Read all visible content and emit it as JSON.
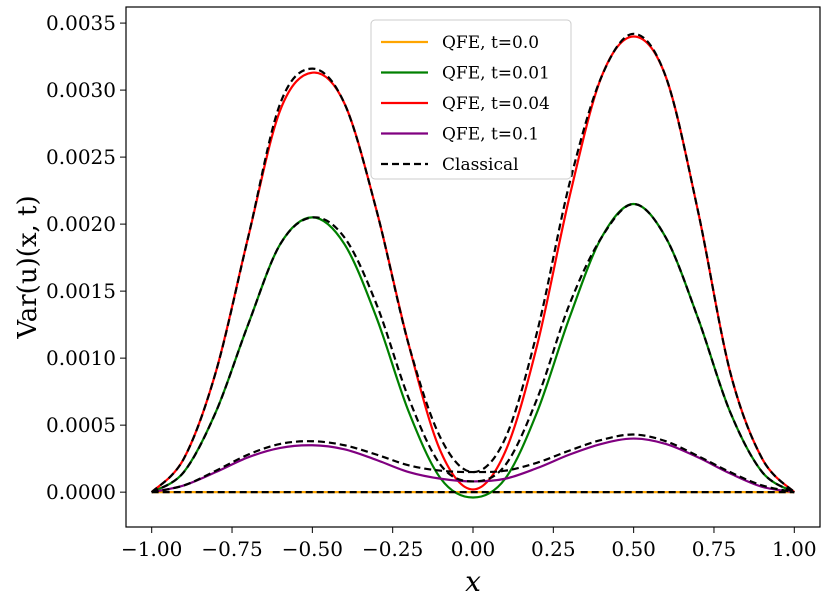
{
  "chart_data": {
    "type": "line",
    "title": "",
    "xlabel": "x",
    "ylabel": "Var(u)(x, t)",
    "xlim": [
      -1.08,
      1.08
    ],
    "ylim": [
      -0.00026,
      0.00362
    ],
    "grid": false,
    "legend_position": "top-center",
    "x_ticks": [
      -1.0,
      -0.75,
      -0.5,
      -0.25,
      0.0,
      0.25,
      0.5,
      0.75,
      1.0
    ],
    "x_tick_labels": [
      "−1.00",
      "−0.75",
      "−0.50",
      "−0.25",
      "0.00",
      "0.25",
      "0.50",
      "0.75",
      "1.00"
    ],
    "y_ticks": [
      0.0,
      0.0005,
      0.001,
      0.0015,
      0.002,
      0.0025,
      0.003,
      0.0035
    ],
    "y_tick_labels": [
      "0.0000",
      "0.0005",
      "0.0010",
      "0.0015",
      "0.0020",
      "0.0025",
      "0.0030",
      "0.0035"
    ],
    "x": [
      -1.0,
      -0.9,
      -0.8,
      -0.7,
      -0.6,
      -0.5,
      -0.4,
      -0.3,
      -0.2,
      -0.1,
      0.0,
      0.1,
      0.2,
      0.3,
      0.4,
      0.5,
      0.6,
      0.7,
      0.8,
      0.9,
      1.0
    ],
    "series": [
      {
        "name": "QFE, t=0.0",
        "color": "#ffa500",
        "dash": "solid",
        "values": [
          0,
          0,
          0,
          0,
          0,
          0,
          0,
          0,
          0,
          0,
          0,
          0,
          0,
          0,
          0,
          0,
          0,
          0,
          0,
          0,
          0
        ]
      },
      {
        "name": "QFE, t=0.01",
        "color": "#008000",
        "dash": "solid",
        "values": [
          0.0,
          0.00015,
          0.0006,
          0.00125,
          0.00185,
          0.00205,
          0.00185,
          0.0013,
          0.0006,
          0.0001,
          -4e-05,
          0.0001,
          0.0006,
          0.0013,
          0.0019,
          0.00215,
          0.0019,
          0.0013,
          0.0006,
          0.00015,
          0.0
        ]
      },
      {
        "name": "QFE, t=0.04",
        "color": "#ff0000",
        "dash": "solid",
        "values": [
          0.0,
          0.00025,
          0.0009,
          0.0019,
          0.00285,
          0.00313,
          0.0029,
          0.0021,
          0.0011,
          0.0003,
          2e-05,
          0.0003,
          0.0011,
          0.0022,
          0.0031,
          0.0034,
          0.0031,
          0.0021,
          0.0009,
          0.00025,
          0.0
        ]
      },
      {
        "name": "QFE, t=0.1",
        "color": "#800080",
        "dash": "solid",
        "values": [
          0.0,
          5e-05,
          0.00015,
          0.00026,
          0.00033,
          0.00035,
          0.00032,
          0.00024,
          0.00015,
          0.0001,
          8e-05,
          0.0001,
          0.00018,
          0.00028,
          0.00036,
          0.0004,
          0.00036,
          0.00026,
          0.00014,
          4e-05,
          0.0
        ]
      },
      {
        "name": "Classical",
        "color": "#000000",
        "dash": "dashed",
        "values": [
          0.0,
          0.00025,
          0.0009,
          0.0019,
          0.0029,
          0.00316,
          0.0029,
          0.0021,
          0.0011,
          0.0004,
          0.00015,
          0.0004,
          0.0012,
          0.0023,
          0.0031,
          0.00342,
          0.0031,
          0.0021,
          0.0009,
          0.00025,
          0.0
        ]
      },
      {
        "name": "Classical (t=0.01)",
        "color": "#000000",
        "dash": "dashed",
        "in_legend": false,
        "values": [
          0.0,
          0.00015,
          0.0006,
          0.00125,
          0.00185,
          0.00205,
          0.0019,
          0.0014,
          0.0007,
          0.0002,
          8e-05,
          0.0002,
          0.0007,
          0.0014,
          0.0019,
          0.00215,
          0.0019,
          0.0013,
          0.0006,
          0.00015,
          0.0
        ]
      },
      {
        "name": "Classical (t=0.1)",
        "color": "#000000",
        "dash": "dashed",
        "in_legend": false,
        "values": [
          0.0,
          5e-05,
          0.00016,
          0.00028,
          0.00036,
          0.00038,
          0.00035,
          0.00028,
          0.0002,
          0.00016,
          0.00015,
          0.00016,
          0.00022,
          0.00031,
          0.00039,
          0.00043,
          0.00038,
          0.00027,
          0.00015,
          5e-05,
          0.0
        ]
      },
      {
        "name": "Classical (t=0.0)",
        "color": "#000000",
        "dash": "dashed",
        "in_legend": false,
        "values": [
          0,
          0,
          0,
          0,
          0,
          0,
          0,
          0,
          0,
          0,
          0,
          0,
          0,
          0,
          0,
          0,
          0,
          0,
          0,
          0,
          0
        ]
      }
    ]
  }
}
